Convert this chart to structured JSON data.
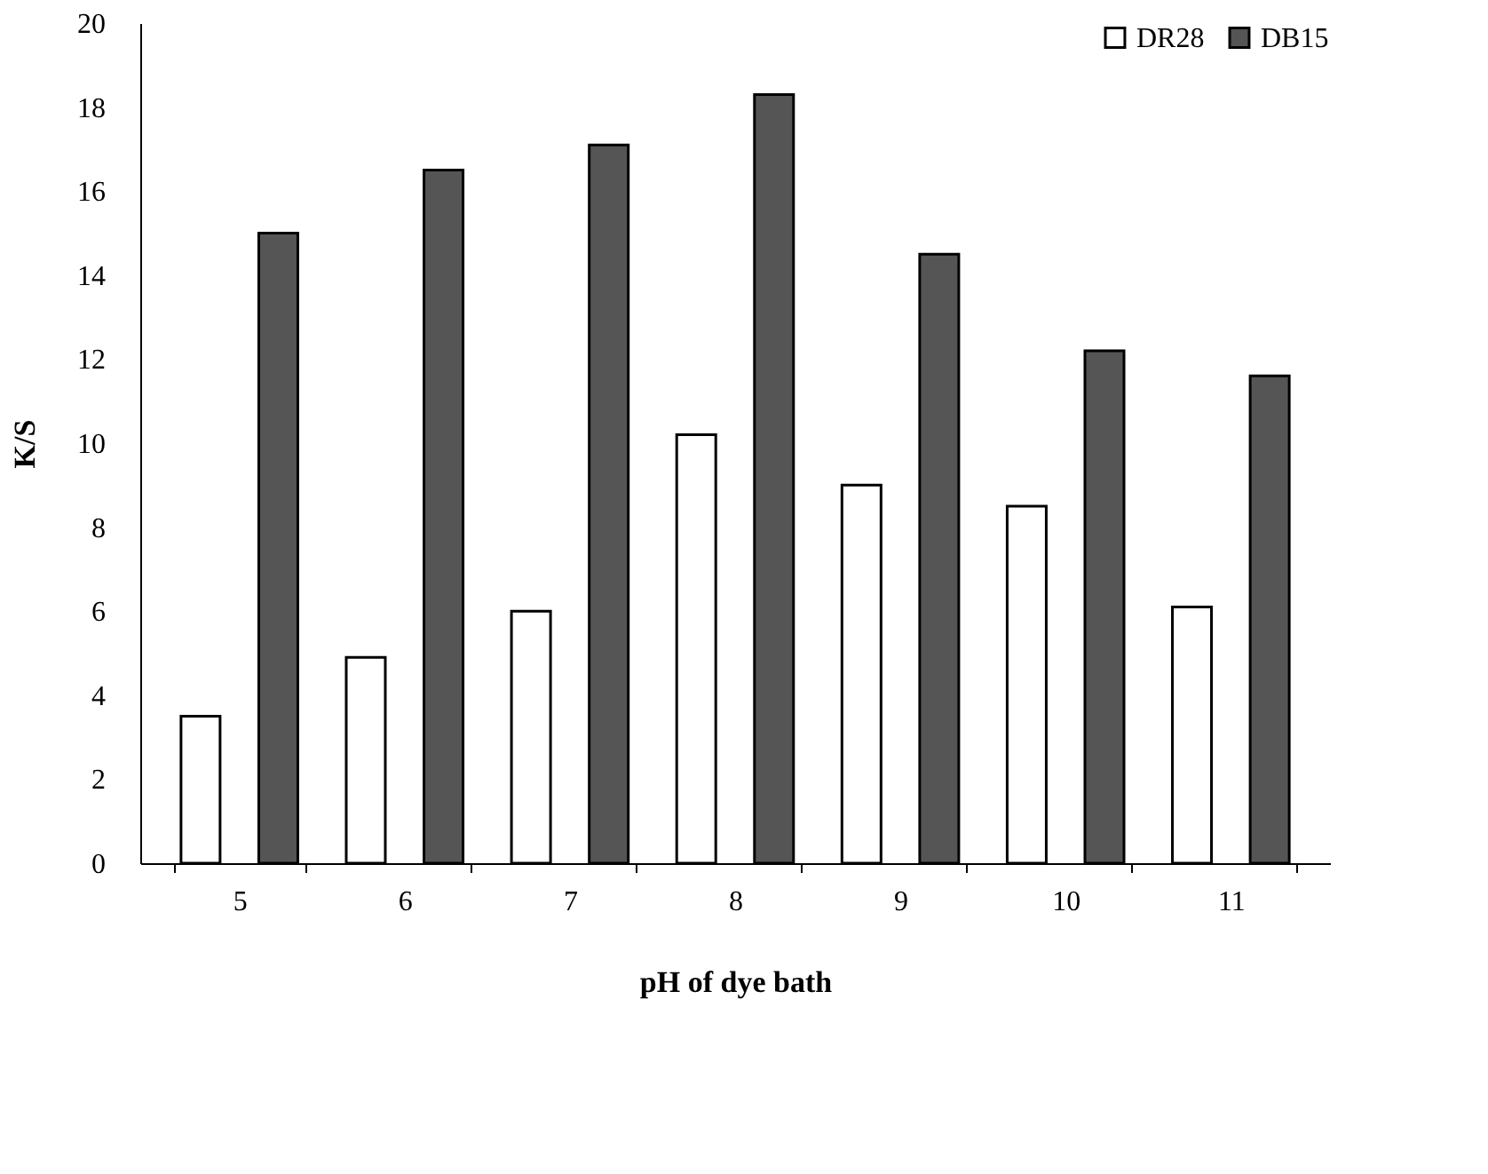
{
  "chart_data": {
    "type": "bar",
    "xlabel": "pH of dye bath",
    "ylabel": "K/S",
    "categories": [
      "5",
      "6",
      "7",
      "8",
      "9",
      "10",
      "11"
    ],
    "series": [
      {
        "name": "DR28",
        "color": "#ffffff",
        "values": [
          3.5,
          4.9,
          6.0,
          10.2,
          9.0,
          8.5,
          6.1
        ]
      },
      {
        "name": "DB15",
        "color": "#555555",
        "values": [
          15.0,
          16.5,
          17.1,
          18.3,
          14.5,
          12.2,
          11.6
        ]
      }
    ],
    "ylim": [
      0,
      20
    ],
    "yticks": [
      0,
      2,
      4,
      6,
      8,
      10,
      12,
      14,
      16,
      18,
      20
    ],
    "grid": false,
    "legend": "top right"
  }
}
